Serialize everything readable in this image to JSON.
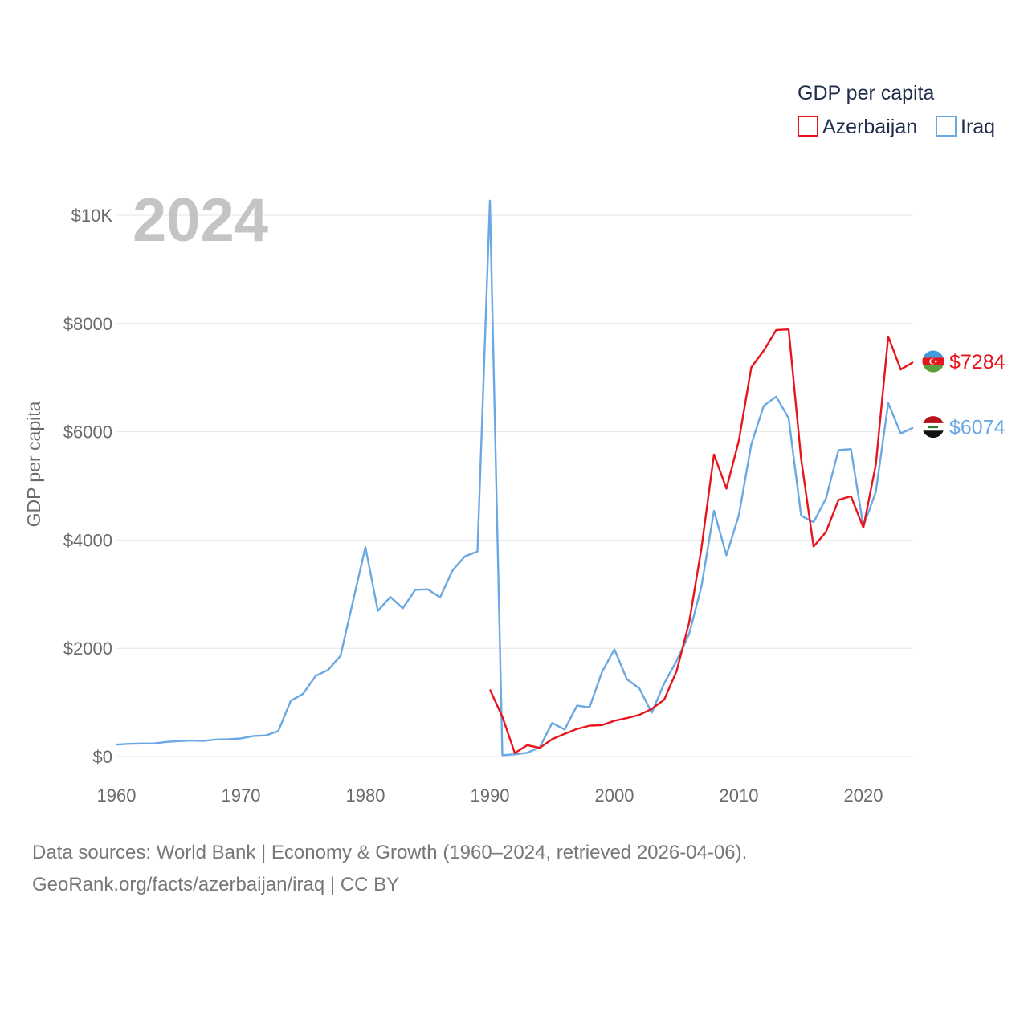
{
  "chart_data": {
    "type": "line",
    "title": "GDP per capita",
    "year_label": "2024",
    "ylabel": "GDP per capita",
    "xlabel": "",
    "xlim": [
      1960,
      2024
    ],
    "ylim": [
      0,
      10000
    ],
    "x_ticks": [
      1960,
      1970,
      1980,
      1990,
      2000,
      2010,
      2020
    ],
    "y_ticks": [
      {
        "value": 0,
        "label": "$0"
      },
      {
        "value": 2000,
        "label": "$2000"
      },
      {
        "value": 4000,
        "label": "$4000"
      },
      {
        "value": 6000,
        "label": "$6000"
      },
      {
        "value": 8000,
        "label": "$8000"
      },
      {
        "value": 10000,
        "label": "$10K"
      }
    ],
    "grid": true,
    "legend_position": "top-right",
    "series": [
      {
        "name": "Azerbaijan",
        "color": "#e8141b",
        "end_label": "$7284",
        "flag": "azerbaijan-flag",
        "x": [
          1990,
          1991,
          1992,
          1993,
          1994,
          1995,
          1996,
          1997,
          1998,
          1999,
          2000,
          2001,
          2002,
          2003,
          2004,
          2005,
          2006,
          2007,
          2008,
          2009,
          2010,
          2011,
          2012,
          2013,
          2014,
          2015,
          2016,
          2017,
          2018,
          2019,
          2020,
          2021,
          2022,
          2023,
          2024
        ],
        "values": [
          1237,
          735,
          65,
          210,
          160,
          320,
          420,
          510,
          570,
          580,
          660,
          710,
          770,
          880,
          1050,
          1580,
          2470,
          3860,
          5580,
          4950,
          5840,
          7190,
          7500,
          7880,
          7890,
          5500,
          3880,
          4150,
          4740,
          4810,
          4230,
          5390,
          7760,
          7150,
          7284
        ]
      },
      {
        "name": "Iraq",
        "color": "#6aa8e4",
        "end_label": "$6074",
        "flag": "iraq-flag",
        "x": [
          1960,
          1961,
          1962,
          1963,
          1964,
          1965,
          1966,
          1967,
          1968,
          1969,
          1970,
          1971,
          1972,
          1973,
          1974,
          1975,
          1976,
          1977,
          1978,
          1979,
          1980,
          1981,
          1982,
          1983,
          1984,
          1985,
          1986,
          1987,
          1988,
          1989,
          1990,
          1991,
          1992,
          1993,
          1994,
          1995,
          1996,
          1997,
          1998,
          1999,
          2000,
          2001,
          2002,
          2003,
          2004,
          2005,
          2006,
          2007,
          2008,
          2009,
          2010,
          2011,
          2012,
          2013,
          2014,
          2015,
          2016,
          2017,
          2018,
          2019,
          2020,
          2021,
          2022,
          2023,
          2024
        ],
        "values": [
          220,
          235,
          240,
          240,
          270,
          285,
          295,
          290,
          315,
          320,
          335,
          380,
          390,
          470,
          1030,
          1160,
          1490,
          1600,
          1860,
          2870,
          3870,
          2690,
          2950,
          2740,
          3080,
          3090,
          2940,
          3440,
          3700,
          3790,
          10270,
          25,
          40,
          70,
          170,
          620,
          500,
          940,
          910,
          1560,
          1980,
          1430,
          1260,
          810,
          1350,
          1770,
          2260,
          3150,
          4540,
          3720,
          4460,
          5770,
          6480,
          6650,
          6250,
          4450,
          4330,
          4770,
          5660,
          5680,
          4250,
          4890,
          6530,
          5970,
          6074
        ]
      }
    ]
  },
  "source": {
    "line1": "Data sources: World Bank | Economy & Growth (1960–2024, retrieved 2026-04-06).",
    "line2": "GeoRank.org/facts/azerbaijan/iraq | CC BY"
  }
}
